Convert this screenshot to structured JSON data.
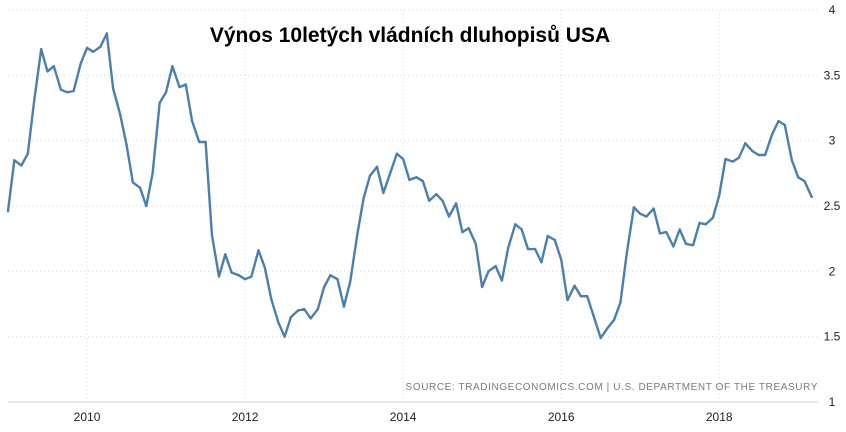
{
  "chart_data": {
    "type": "line",
    "title": "Výnos 10letých vládních dluhopisů USA",
    "source": "SOURCE: TRADINGECONOMICS.COM | U.S. DEPARTMENT OF THE TREASURY",
    "xlabel": "",
    "ylabel": "",
    "xlim": [
      2009.0,
      2019.25
    ],
    "ylim": [
      1,
      4
    ],
    "x_ticks": [
      2010,
      2012,
      2014,
      2016,
      2018
    ],
    "x_tick_labels": [
      "2010",
      "2012",
      "2014",
      "2016",
      "2018"
    ],
    "y_ticks": [
      1,
      1.5,
      2,
      2.5,
      3,
      3.5,
      4
    ],
    "y_tick_labels": [
      "1",
      "1.5",
      "2",
      "2.5",
      "3",
      "3.5",
      "4"
    ],
    "y_axis_side": "right",
    "grid": true,
    "legend": "none",
    "line_color": "#4a7fb0",
    "series": [
      {
        "x": [
          2009.0,
          2009.08,
          2009.17,
          2009.25,
          2009.33,
          2009.42,
          2009.5,
          2009.58,
          2009.67,
          2009.75,
          2009.83,
          2009.92,
          2010.0,
          2010.08,
          2010.17,
          2010.25,
          2010.33,
          2010.42,
          2010.5,
          2010.58,
          2010.67,
          2010.75,
          2010.83,
          2010.92,
          2011.0,
          2011.08,
          2011.17,
          2011.25,
          2011.33,
          2011.42,
          2011.5,
          2011.58,
          2011.67,
          2011.75,
          2011.83,
          2011.92,
          2012.0,
          2012.08,
          2012.17,
          2012.25,
          2012.33,
          2012.42,
          2012.5,
          2012.58,
          2012.67,
          2012.75,
          2012.83,
          2012.92,
          2013.0,
          2013.08,
          2013.17,
          2013.25,
          2013.33,
          2013.42,
          2013.5,
          2013.58,
          2013.67,
          2013.75,
          2013.83,
          2013.92,
          2014.0,
          2014.08,
          2014.17,
          2014.25,
          2014.33,
          2014.42,
          2014.5,
          2014.58,
          2014.67,
          2014.75,
          2014.83,
          2014.92,
          2015.0,
          2015.08,
          2015.17,
          2015.25,
          2015.33,
          2015.42,
          2015.5,
          2015.58,
          2015.67,
          2015.75,
          2015.83,
          2015.92,
          2016.0,
          2016.08,
          2016.17,
          2016.25,
          2016.33,
          2016.42,
          2016.5,
          2016.58,
          2016.67,
          2016.75,
          2016.83,
          2016.92,
          2017.0,
          2017.08,
          2017.17,
          2017.25,
          2017.33,
          2017.42,
          2017.5,
          2017.58,
          2017.67,
          2017.75,
          2017.83,
          2017.92,
          2018.0,
          2018.08,
          2018.17,
          2018.25,
          2018.33,
          2018.42,
          2018.5,
          2018.58,
          2018.67,
          2018.75,
          2018.83,
          2018.92,
          2019.0,
          2019.08,
          2019.17
        ],
        "y": [
          2.46,
          2.85,
          2.81,
          2.9,
          3.3,
          3.7,
          3.53,
          3.57,
          3.39,
          3.37,
          3.38,
          3.59,
          3.71,
          3.68,
          3.72,
          3.82,
          3.4,
          3.2,
          2.97,
          2.68,
          2.64,
          2.5,
          2.75,
          3.29,
          3.37,
          3.57,
          3.41,
          3.43,
          3.15,
          2.99,
          2.99,
          2.28,
          1.96,
          2.13,
          1.99,
          1.97,
          1.94,
          1.96,
          2.16,
          2.03,
          1.79,
          1.61,
          1.5,
          1.65,
          1.7,
          1.71,
          1.64,
          1.71,
          1.88,
          1.97,
          1.94,
          1.73,
          1.92,
          2.28,
          2.56,
          2.73,
          2.8,
          2.6,
          2.74,
          2.9,
          2.86,
          2.7,
          2.72,
          2.69,
          2.54,
          2.59,
          2.54,
          2.42,
          2.52,
          2.3,
          2.33,
          2.21,
          1.88,
          2.0,
          2.04,
          1.93,
          2.18,
          2.36,
          2.32,
          2.17,
          2.17,
          2.07,
          2.27,
          2.24,
          2.09,
          1.78,
          1.89,
          1.81,
          1.81,
          1.64,
          1.49,
          1.56,
          1.63,
          1.76,
          2.14,
          2.49,
          2.44,
          2.42,
          2.48,
          2.29,
          2.3,
          2.19,
          2.32,
          2.21,
          2.2,
          2.37,
          2.36,
          2.41,
          2.58,
          2.86,
          2.84,
          2.87,
          2.98,
          2.92,
          2.89,
          2.89,
          3.05,
          3.15,
          3.12,
          2.85,
          2.72,
          2.69,
          2.57
        ]
      }
    ]
  }
}
